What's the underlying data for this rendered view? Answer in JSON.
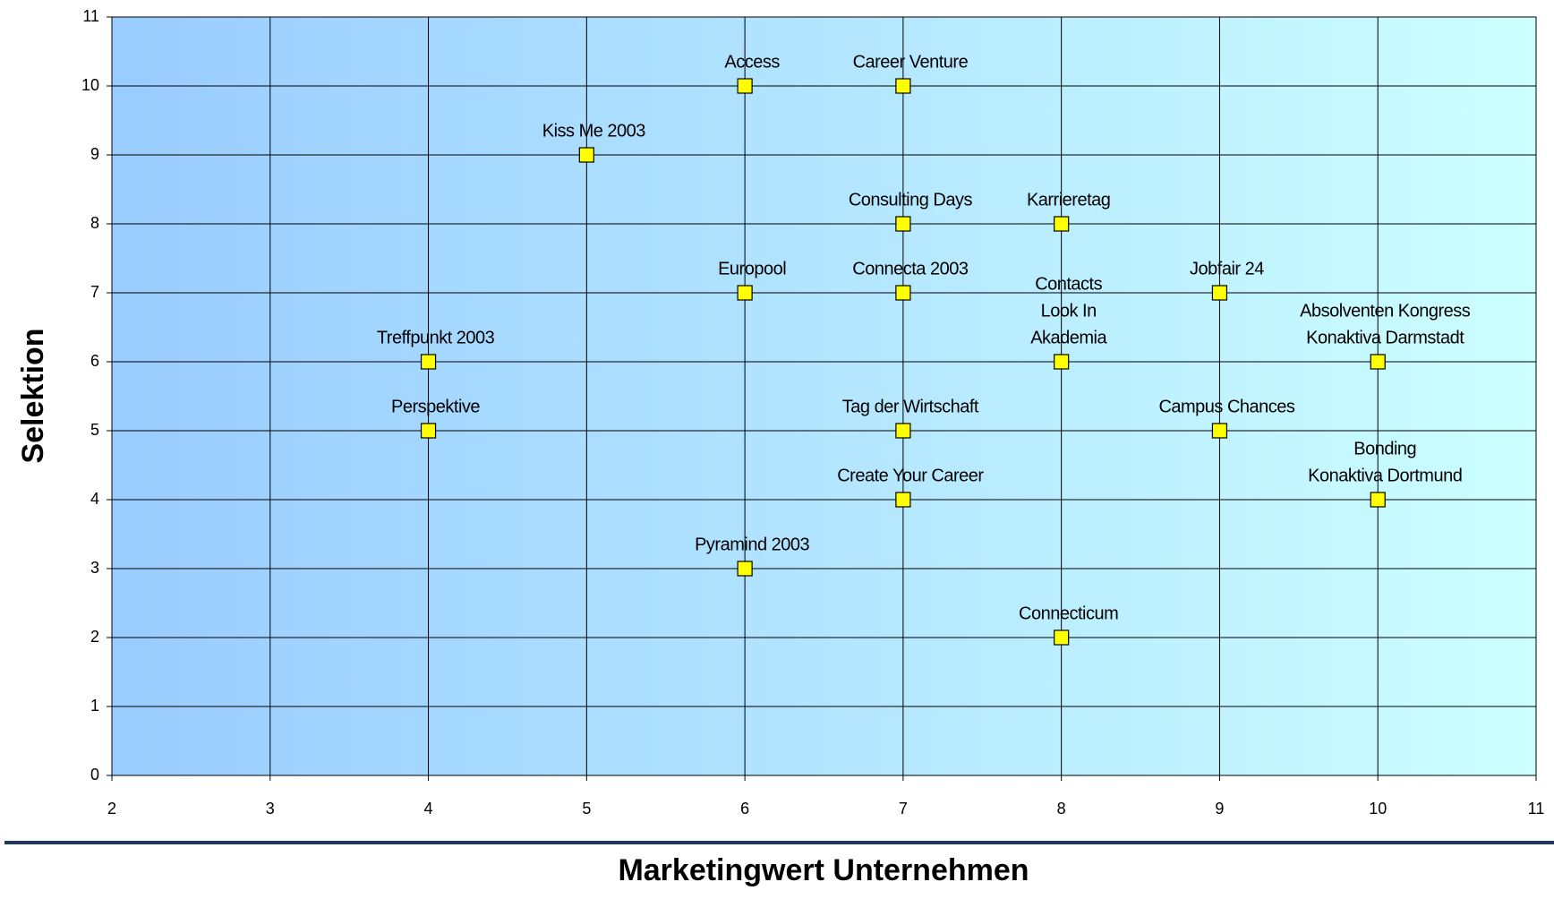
{
  "chart_data": {
    "type": "scatter",
    "xlabel": "Marketingwert Unternehmen",
    "ylabel": "Selektion",
    "xlim": [
      2,
      11
    ],
    "xticks": [
      2,
      3,
      4,
      5,
      6,
      7,
      8,
      9,
      10,
      11
    ],
    "ylim": [
      0,
      11
    ],
    "yticks": [
      0,
      1,
      2,
      3,
      4,
      5,
      6,
      7,
      8,
      9,
      10,
      11
    ],
    "grid": true,
    "marker_color": "#ffff00",
    "x": [
      6,
      7,
      5,
      7,
      8,
      6,
      7,
      8,
      9,
      10,
      4,
      4,
      7,
      9,
      10,
      7,
      6,
      8
    ],
    "values": [
      10,
      10,
      9,
      8,
      8,
      7,
      7,
      6,
      7,
      6,
      6,
      5,
      5,
      5,
      4,
      4,
      3,
      2
    ],
    "point_labels": [
      [
        "Access"
      ],
      [
        "Career Venture"
      ],
      [
        "Kiss Me 2003"
      ],
      [
        "Consulting Days"
      ],
      [
        "Karrieretag"
      ],
      [
        "Europool"
      ],
      [
        "Connecta 2003"
      ],
      [
        "Contacts",
        "Look In",
        "Akademia"
      ],
      [
        "Jobfair 24"
      ],
      [
        "Absolventen Kongress",
        "Konaktiva Darmstadt"
      ],
      [
        "Treffpunkt 2003"
      ],
      [
        "Perspektive"
      ],
      [
        "Tag der Wirtschaft"
      ],
      [
        "Campus Chances"
      ],
      [
        "Bonding",
        "Konaktiva Dortmund"
      ],
      [
        "Create Your Career"
      ],
      [
        "Pyramind 2003"
      ],
      [
        "Connecticum"
      ]
    ]
  }
}
